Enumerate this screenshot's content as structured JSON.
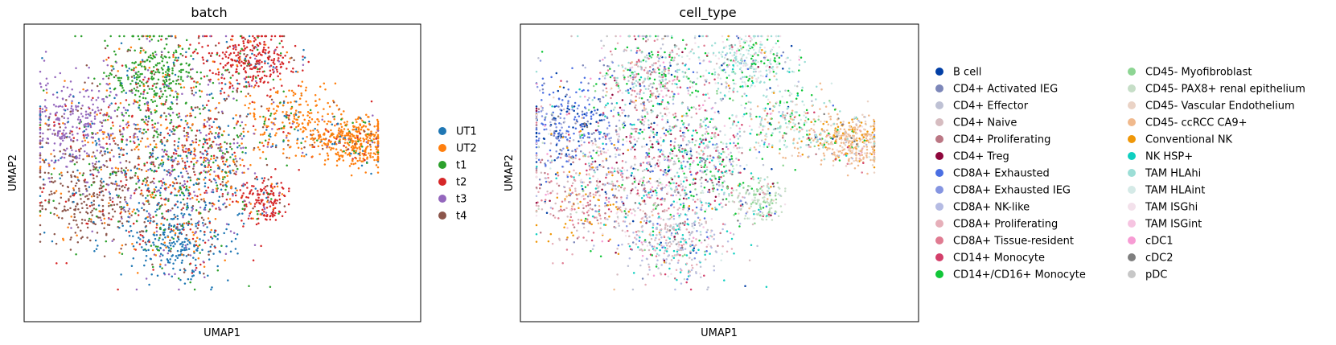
{
  "chart_data": [
    {
      "type": "scatter",
      "title": "batch",
      "xlabel": "UMAP1",
      "ylabel": "UMAP2",
      "grid": false,
      "ticks": false,
      "legend": "right",
      "legend_columns": 1,
      "categories": [
        {
          "name": "UT1",
          "color": "#1f77b4"
        },
        {
          "name": "UT2",
          "color": "#ff7f0e"
        },
        {
          "name": "t1",
          "color": "#2ca02c"
        },
        {
          "name": "t2",
          "color": "#d62728"
        },
        {
          "name": "t3",
          "color": "#9467bd"
        },
        {
          "name": "t4",
          "color": "#8c564b"
        }
      ]
    },
    {
      "type": "scatter",
      "title": "cell_type",
      "xlabel": "UMAP1",
      "ylabel": "UMAP2",
      "grid": false,
      "ticks": false,
      "legend": "right",
      "legend_columns": 2,
      "categories": [
        {
          "name": "B cell",
          "color": "#023fa5"
        },
        {
          "name": "CD4+ Activated IEG",
          "color": "#7d87b9"
        },
        {
          "name": "CD4+ Effector",
          "color": "#bec1d4"
        },
        {
          "name": "CD4+ Naive",
          "color": "#d6bcc0"
        },
        {
          "name": "CD4+ Proliferating",
          "color": "#bb7784"
        },
        {
          "name": "CD4+ Treg",
          "color": "#8e063b"
        },
        {
          "name": "CD8A+ Exhausted",
          "color": "#4a6fe3"
        },
        {
          "name": "CD8A+ Exhausted IEG",
          "color": "#8595e1"
        },
        {
          "name": "CD8A+ NK-like",
          "color": "#b5bbe3"
        },
        {
          "name": "CD8A+ Proliferating",
          "color": "#e6afb9"
        },
        {
          "name": "CD8A+ Tissue-resident",
          "color": "#e07b91"
        },
        {
          "name": "CD14+ Monocyte",
          "color": "#d33f6a"
        },
        {
          "name": "CD14+/CD16+ Monocyte",
          "color": "#11c638"
        },
        {
          "name": "CD45- Myofibroblast",
          "color": "#8dd593"
        },
        {
          "name": "CD45- PAX8+ renal epithelium",
          "color": "#c6dec7"
        },
        {
          "name": "CD45- Vascular Endothelium",
          "color": "#ead3c6"
        },
        {
          "name": "CD45- ccRCC CA9+",
          "color": "#f0b98d"
        },
        {
          "name": "Conventional NK",
          "color": "#ef9708"
        },
        {
          "name": "NK HSP+",
          "color": "#0fcfc0"
        },
        {
          "name": "TAM HLAhi",
          "color": "#9cded6"
        },
        {
          "name": "TAM HLAint",
          "color": "#d5eae7"
        },
        {
          "name": "TAM ISGhi",
          "color": "#f3e1eb"
        },
        {
          "name": "TAM ISGint",
          "color": "#f6c4e1"
        },
        {
          "name": "cDC1",
          "color": "#f79cd4"
        },
        {
          "name": "cDC2",
          "color": "#7f7f7f"
        },
        {
          "name": "pDC",
          "color": "#c7c7c7"
        }
      ]
    }
  ]
}
